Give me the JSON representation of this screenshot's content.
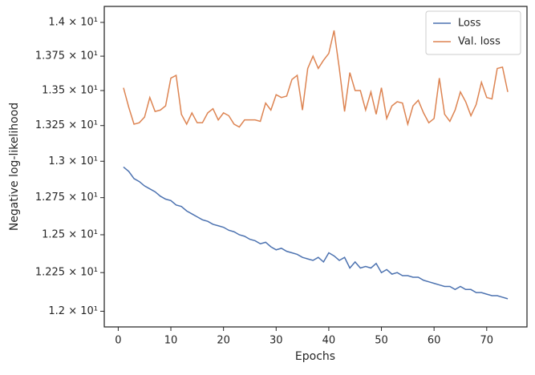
{
  "chart_data": {
    "type": "line",
    "xlabel": "Epochs",
    "ylabel": "Negative log-likelihood",
    "x": [
      1,
      2,
      3,
      4,
      5,
      6,
      7,
      8,
      9,
      10,
      11,
      12,
      13,
      14,
      15,
      16,
      17,
      18,
      19,
      20,
      21,
      22,
      23,
      24,
      25,
      26,
      27,
      28,
      29,
      30,
      31,
      32,
      33,
      34,
      35,
      36,
      37,
      38,
      39,
      40,
      41,
      42,
      43,
      44,
      45,
      46,
      47,
      48,
      49,
      50,
      51,
      52,
      53,
      54,
      55,
      56,
      57,
      58,
      59,
      60,
      61,
      62,
      63,
      64,
      65,
      66,
      67,
      68,
      69,
      70,
      71,
      72,
      73,
      74
    ],
    "series": [
      {
        "name": "Loss",
        "color": "#4c72b0",
        "values": [
          12.96,
          12.93,
          12.88,
          12.86,
          12.83,
          12.81,
          12.79,
          12.76,
          12.74,
          12.73,
          12.7,
          12.69,
          12.66,
          12.64,
          12.62,
          12.6,
          12.59,
          12.57,
          12.56,
          12.55,
          12.53,
          12.52,
          12.5,
          12.49,
          12.47,
          12.46,
          12.44,
          12.45,
          12.42,
          12.4,
          12.41,
          12.39,
          12.38,
          12.37,
          12.35,
          12.34,
          12.33,
          12.35,
          12.32,
          12.38,
          12.36,
          12.33,
          12.35,
          12.28,
          12.32,
          12.28,
          12.29,
          12.28,
          12.31,
          12.25,
          12.27,
          12.24,
          12.25,
          12.23,
          12.23,
          12.22,
          12.22,
          12.2,
          12.19,
          12.18,
          12.17,
          12.16,
          12.16,
          12.14,
          12.16,
          12.14,
          12.14,
          12.12,
          12.12,
          12.11,
          12.1,
          12.1,
          12.09,
          12.08
        ]
      },
      {
        "name": "Val. loss",
        "color": "#dd8452",
        "values": [
          13.52,
          13.38,
          13.26,
          13.27,
          13.31,
          13.45,
          13.35,
          13.36,
          13.39,
          13.59,
          13.61,
          13.33,
          13.26,
          13.34,
          13.27,
          13.27,
          13.34,
          13.37,
          13.29,
          13.34,
          13.32,
          13.26,
          13.24,
          13.29,
          13.29,
          13.29,
          13.28,
          13.41,
          13.36,
          13.47,
          13.45,
          13.46,
          13.58,
          13.61,
          13.36,
          13.66,
          13.75,
          13.66,
          13.72,
          13.77,
          13.94,
          13.66,
          13.35,
          13.63,
          13.5,
          13.5,
          13.36,
          13.49,
          13.33,
          13.52,
          13.3,
          13.39,
          13.42,
          13.41,
          13.26,
          13.39,
          13.43,
          13.34,
          13.27,
          13.3,
          13.59,
          13.33,
          13.28,
          13.36,
          13.49,
          13.42,
          13.32,
          13.4,
          13.56,
          13.45,
          13.44,
          13.66,
          13.67,
          13.49
        ]
      }
    ],
    "xlim": [
      -2.65,
      77.65
    ],
    "xticks": [
      0,
      10,
      20,
      30,
      40,
      50,
      60,
      70
    ],
    "ylim": [
      11.9,
      14.12
    ],
    "yscale": "log",
    "yticks": [
      {
        "value": 12,
        "label": "1.2 × 10¹"
      },
      {
        "value": 12.25,
        "label": "1.225 × 10¹"
      },
      {
        "value": 12.5,
        "label": "1.25 × 10¹"
      },
      {
        "value": 12.75,
        "label": "1.275 × 10¹"
      },
      {
        "value": 13,
        "label": "1.3 × 10¹"
      },
      {
        "value": 13.25,
        "label": "1.325 × 10¹"
      },
      {
        "value": 13.5,
        "label": "1.35 × 10¹"
      },
      {
        "value": 13.75,
        "label": "1.375 × 10¹"
      },
      {
        "value": 14,
        "label": "1.4 × 10¹"
      }
    ],
    "grid": false,
    "legend": "upper right"
  }
}
